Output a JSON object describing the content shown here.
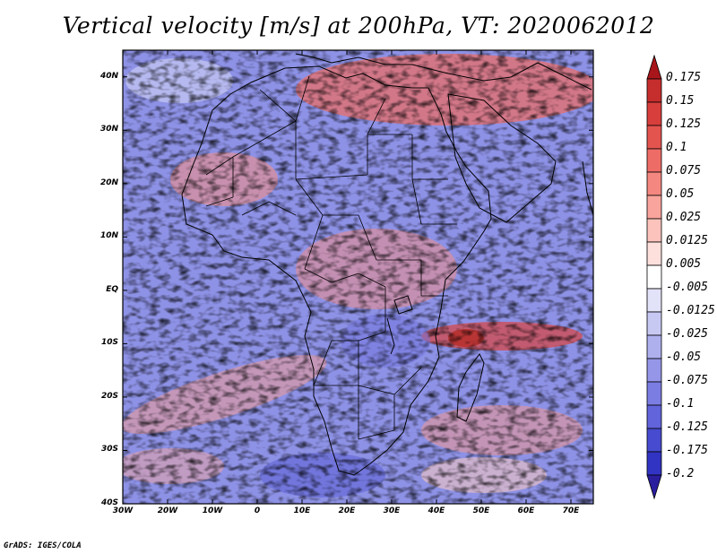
{
  "title": "Vertical velocity [m/s] at 200hPa, VT: 2020062012",
  "footer": "GrADS: IGES/COLA",
  "map": {
    "projection": "lat-lon",
    "lon_range": [
      -30,
      75
    ],
    "lat_range": [
      -40,
      45
    ],
    "variable": "Vertical velocity",
    "units": "m/s",
    "level": "200hPa",
    "valid_time": "2020062012",
    "colors": {
      "frame": "#000000",
      "positive": "#e8605a",
      "negative": "#6a6ee0",
      "neutral": "#ffffff"
    }
  },
  "axes": {
    "lat_ticks": [
      {
        "value": 40,
        "label": "40N"
      },
      {
        "value": 30,
        "label": "30N"
      },
      {
        "value": 20,
        "label": "20N"
      },
      {
        "value": 10,
        "label": "10N"
      },
      {
        "value": 0,
        "label": "EQ"
      },
      {
        "value": -10,
        "label": "10S"
      },
      {
        "value": -20,
        "label": "20S"
      },
      {
        "value": -30,
        "label": "30S"
      },
      {
        "value": -40,
        "label": "40S"
      }
    ],
    "lon_ticks": [
      {
        "value": -30,
        "label": "30W"
      },
      {
        "value": -20,
        "label": "20W"
      },
      {
        "value": -10,
        "label": "10W"
      },
      {
        "value": 0,
        "label": "0"
      },
      {
        "value": 10,
        "label": "10E"
      },
      {
        "value": 20,
        "label": "20E"
      },
      {
        "value": 30,
        "label": "30E"
      },
      {
        "value": 40,
        "label": "40E"
      },
      {
        "value": 50,
        "label": "50E"
      },
      {
        "value": 60,
        "label": "60E"
      },
      {
        "value": 70,
        "label": "70E"
      }
    ]
  },
  "colorbar": {
    "levels": [
      {
        "label": "0.175",
        "color": "#b51a1e"
      },
      {
        "label": "0.15",
        "color": "#c62d2d"
      },
      {
        "label": "0.125",
        "color": "#d83e3c"
      },
      {
        "label": "0.1",
        "color": "#e4544f"
      },
      {
        "label": "0.075",
        "color": "#ee6c66"
      },
      {
        "label": "0.05",
        "color": "#f4877f"
      },
      {
        "label": "0.025",
        "color": "#f9a49c"
      },
      {
        "label": "0.0125",
        "color": "#fcc3bc"
      },
      {
        "label": "0.005",
        "color": "#fde0dc"
      },
      {
        "label": "-0.005",
        "color": "#ffffff"
      },
      {
        "label": "-0.0125",
        "color": "#e2e2f8"
      },
      {
        "label": "-0.025",
        "color": "#c8c9f3"
      },
      {
        "label": "-0.05",
        "color": "#aeb0ee"
      },
      {
        "label": "-0.075",
        "color": "#9596e8"
      },
      {
        "label": "-0.1",
        "color": "#7b7de2"
      },
      {
        "label": "-0.125",
        "color": "#6164da"
      },
      {
        "label": "-0.175",
        "color": "#474bcf"
      },
      {
        "label": "-0.2",
        "color": "#3134c2"
      }
    ],
    "top_arrow_color": "#a8161b",
    "bottom_arrow_color": "#2a1e9e"
  }
}
